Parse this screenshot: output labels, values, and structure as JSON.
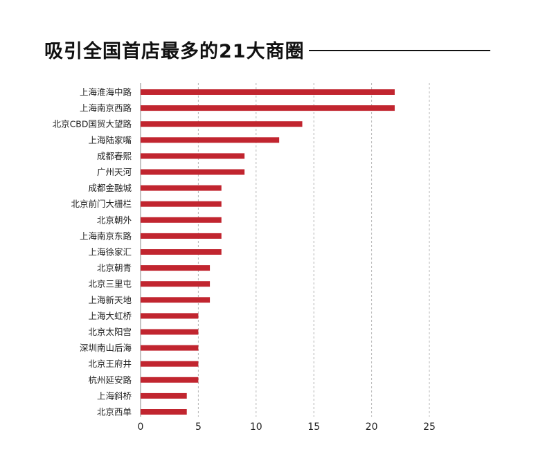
{
  "header": {
    "title": "吸引全国首店最多的21大商圈"
  },
  "colors": {
    "bar": "#c1252f",
    "grid": "#b5b5b5",
    "axis": "#888888"
  },
  "chart_data": {
    "type": "bar",
    "orientation": "horizontal",
    "title": "吸引全国首店最多的21大商圈",
    "xlabel": "",
    "ylabel": "",
    "xlim": [
      0,
      25
    ],
    "xticks": [
      0,
      5,
      10,
      15,
      20,
      25
    ],
    "grid": true,
    "legend": "none",
    "categories": [
      "上海淮海中路",
      "上海南京西路",
      "北京CBD国贸大望路",
      "上海陆家嘴",
      "成都春熙",
      "广州天河",
      "成都金融城",
      "北京前门大栅栏",
      "北京朝外",
      "上海南京东路",
      "上海徐家汇",
      "北京朝青",
      "北京三里屯",
      "上海新天地",
      "上海大虹桥",
      "北京太阳宫",
      "深圳南山后海",
      "北京王府井",
      "杭州延安路",
      "上海斜桥",
      "北京西单"
    ],
    "values": [
      22,
      22,
      14,
      12,
      9,
      9,
      7,
      7,
      7,
      7,
      7,
      6,
      6,
      6,
      5,
      5,
      5,
      5,
      5,
      4,
      4
    ]
  }
}
